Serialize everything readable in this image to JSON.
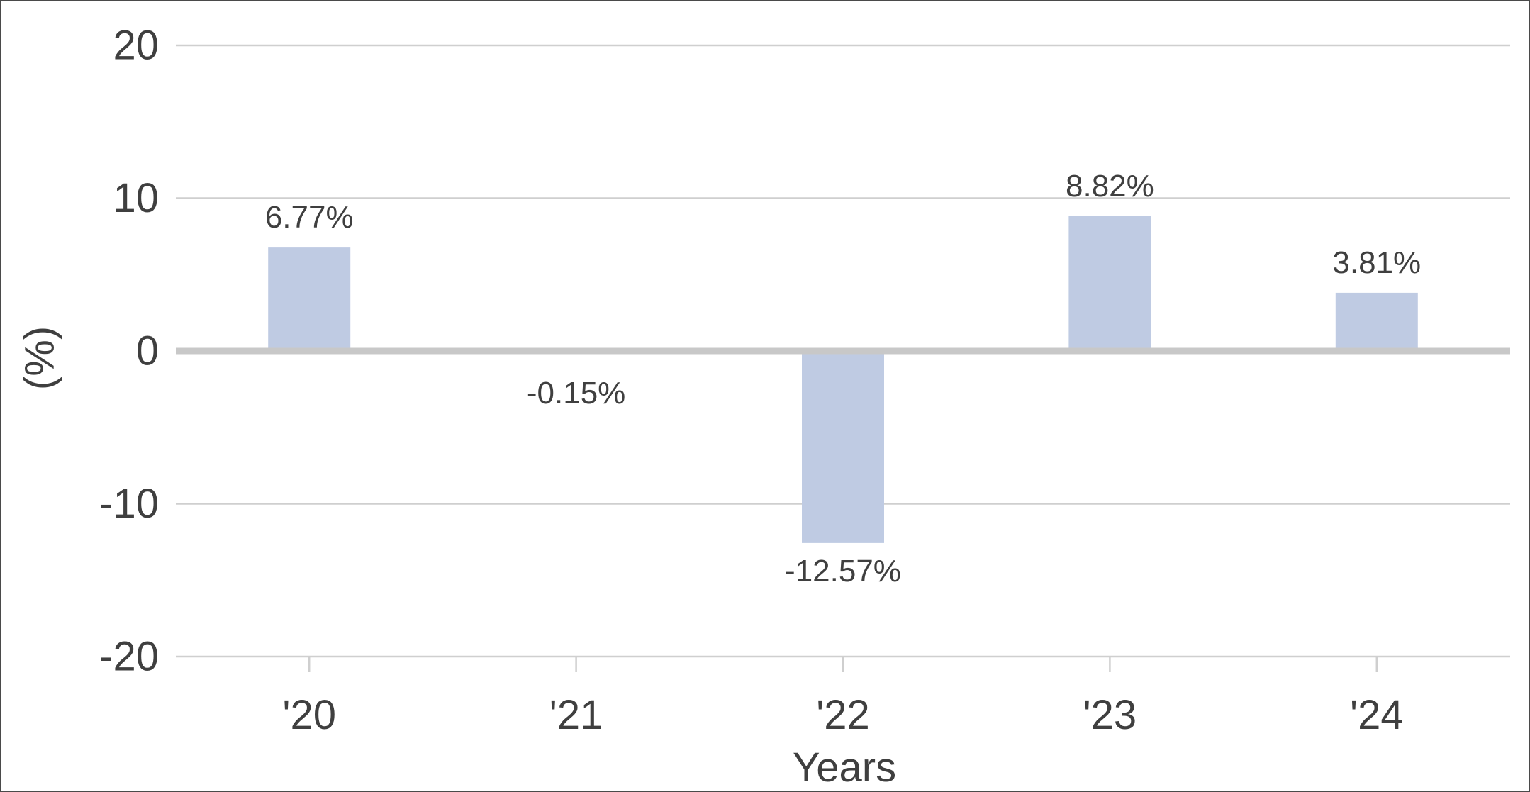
{
  "chart_data": {
    "type": "bar",
    "title": "",
    "xlabel": "Years",
    "ylabel": "(%)",
    "categories": [
      "'20",
      "'21",
      "'22",
      "'23",
      "'24"
    ],
    "values": [
      6.77,
      -0.15,
      -12.57,
      8.82,
      3.81
    ],
    "data_labels": [
      "6.77%",
      "-0.15%",
      "-12.57%",
      "8.82%",
      "3.81%"
    ],
    "ylim": [
      -20,
      20
    ],
    "yticks": [
      20,
      10,
      0,
      -10,
      -20
    ],
    "ytick_labels": [
      "20",
      "10",
      "0",
      "-10",
      "-20"
    ],
    "grid": true,
    "legend": "none",
    "colors": {
      "bar": "#bfcbe3",
      "grid": "#cfcfcf",
      "zero_line": "#c8c8c8",
      "text": "#3f3f3f"
    }
  }
}
